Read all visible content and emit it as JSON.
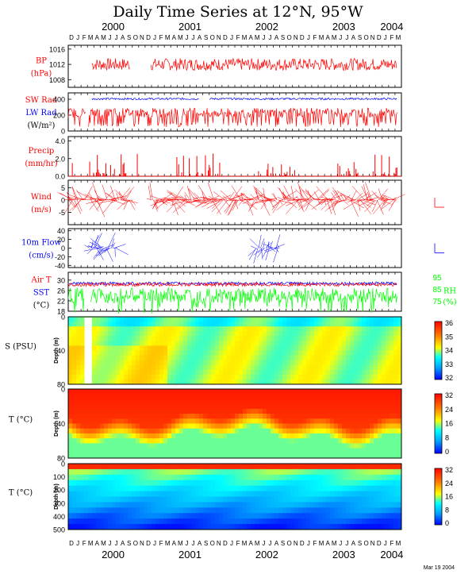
{
  "title": "Daily Time Series at 12°N, 95°W",
  "footer_date": "Mar 19 2004",
  "colors": {
    "red": "#ff0000",
    "blue": "#0000ff",
    "green": "#00ff00",
    "black": "#000000"
  },
  "time_axis": {
    "month_letters": [
      "D",
      "J",
      "F",
      "M",
      "A",
      "M",
      "J",
      "J",
      "A",
      "S",
      "O",
      "N",
      "D",
      "J",
      "F",
      "M",
      "A",
      "M",
      "J",
      "J",
      "A",
      "S",
      "O",
      "N",
      "D",
      "J",
      "F",
      "M",
      "A",
      "M",
      "J",
      "J",
      "A",
      "S",
      "O",
      "N",
      "D",
      "J",
      "F",
      "M",
      "A",
      "M",
      "J",
      "J",
      "A",
      "S",
      "O",
      "N",
      "D",
      "J",
      "F",
      "M"
    ],
    "year_labels": [
      "2000",
      "2001",
      "2002",
      "2003",
      "2004"
    ],
    "start": "1999-12",
    "end": "2004-03"
  },
  "chart_data": [
    {
      "type": "line",
      "panel": "bp",
      "labels": [
        {
          "text": "BP",
          "color": "#ff0000"
        },
        {
          "text": "(hPa)",
          "color": "#ff0000"
        }
      ],
      "ylim": [
        1006,
        1017
      ],
      "yticks": [
        "1016",
        "1012",
        "1008"
      ],
      "series": [
        {
          "color": "#ff0000",
          "segments": [
            [
              "2000-03-20",
              "2000-09-15"
            ],
            [
              "2000-12-20",
              "2004-02-10"
            ]
          ],
          "mean": 1012,
          "amp": 1.6
        }
      ]
    },
    {
      "type": "line",
      "panel": "rad",
      "labels": [
        {
          "text": "SW Rad",
          "color": "#ff0000"
        },
        {
          "text": "LW Rad",
          "color": "#0000ff"
        },
        {
          "text": "(W/m²)",
          "color": "#000000"
        }
      ],
      "ylim": [
        0,
        480
      ],
      "yticks": [
        "400",
        "200",
        "0"
      ],
      "series": [
        {
          "name": "LW Rad",
          "color": "#0000ff",
          "segments": [
            [
              "2000-03-20",
              "2001-08-01"
            ],
            [
              "2001-09-20",
              "2004-02-10"
            ]
          ],
          "mean": 405,
          "amp": 12
        },
        {
          "name": "SW Rad",
          "color": "#ff0000",
          "segments": [
            [
              "1999-12-01",
              "2000-02-20"
            ],
            [
              "2000-03-05",
              "2004-02-10"
            ]
          ],
          "mean": 230,
          "amp": 60
        }
      ]
    },
    {
      "type": "bar",
      "panel": "precip",
      "labels": [
        {
          "text": "Precip",
          "color": "#ff0000"
        },
        {
          "text": "(mm/hr)",
          "color": "#ff0000"
        }
      ],
      "ylim": [
        0,
        4.5
      ],
      "yticks": [
        "4.0",
        "2.0",
        "0.0"
      ],
      "series": [
        {
          "color": "#ff0000",
          "segments": [
            [
              "2000-03-10",
              "2000-10-31"
            ],
            [
              "2001-04-20",
              "2001-11-15"
            ],
            [
              "2002-05-01",
              "2002-11-15"
            ],
            [
              "2003-05-01",
              "2004-02-10"
            ]
          ],
          "max": 2.6
        }
      ]
    },
    {
      "type": "vector",
      "panel": "wind",
      "labels": [
        {
          "text": "Wind",
          "color": "#ff0000"
        },
        {
          "text": "(m/s)",
          "color": "#ff0000"
        }
      ],
      "ylim": [
        -10,
        8
      ],
      "yticks": [
        "5",
        "0",
        "-5"
      ],
      "series": [
        {
          "color": "#ff0000",
          "segments": [
            [
              "1999-12-01",
              "2000-02-20"
            ],
            [
              "2000-03-15",
              "2000-09-20"
            ],
            [
              "2000-12-20",
              "2004-02-10"
            ]
          ]
        }
      ]
    },
    {
      "type": "vector",
      "panel": "flow",
      "labels": [
        {
          "text": "10m Flow",
          "color": "#0000ff"
        },
        {
          "text": "(cm/s)",
          "color": "#0000ff"
        }
      ],
      "ylim": [
        -45,
        45
      ],
      "yticks": [
        "40",
        "20",
        "0",
        "-20",
        "-40"
      ],
      "series": [
        {
          "color": "#0000ff",
          "segments": [
            [
              "2000-03-10",
              "2000-07-10"
            ],
            [
              "2002-04-20",
              "2002-08-15"
            ]
          ]
        }
      ]
    },
    {
      "type": "line",
      "panel": "temp",
      "labels": [
        {
          "text": "Air T",
          "color": "#ff0000"
        },
        {
          "text": "SST",
          "color": "#0000ff"
        },
        {
          "text": "(°C)",
          "color": "#000000"
        }
      ],
      "ylim": [
        18,
        33
      ],
      "yticks": [
        "30",
        "26",
        "22",
        "18"
      ],
      "right_labels": [
        {
          "text": "RH",
          "color": "#00ff00"
        },
        {
          "text": "(%)",
          "color": "#00ff00"
        }
      ],
      "right_ticks": [
        "95",
        "85",
        "75"
      ],
      "series": [
        {
          "name": "RH",
          "color": "#00ff00",
          "segments": [
            [
              "1999-12-01",
              "2000-02-15"
            ],
            [
              "2000-03-15",
              "2004-02-10"
            ]
          ],
          "mean": 24,
          "amp": 3
        },
        {
          "name": "SST",
          "color": "#0000ff",
          "segments": [
            [
              "1999-12-01",
              "2004-02-10"
            ]
          ],
          "mean": 28.7,
          "amp": 0.6
        },
        {
          "name": "Air T",
          "color": "#ff0000",
          "segments": [
            [
              "1999-12-01",
              "2004-02-10"
            ]
          ],
          "mean": 28.3,
          "amp": 0.7
        }
      ]
    },
    {
      "type": "heatmap",
      "panel": "salinity",
      "labels": [
        {
          "text": "S (PSU)",
          "color": "#000000"
        }
      ],
      "ylabel": "Depth (m)",
      "ylim": [
        0,
        80
      ],
      "yticks": [
        "0",
        "40",
        "80"
      ],
      "colorbar": {
        "ticks": [
          "36",
          "35",
          "34",
          "33",
          "32"
        ],
        "range": [
          32,
          36.5
        ]
      },
      "gap": [
        "2000-02-15",
        "2000-03-20"
      ]
    },
    {
      "type": "heatmap",
      "panel": "temp_upper",
      "labels": [
        {
          "text": "T (°C)",
          "color": "#000000"
        }
      ],
      "ylabel": "Depth (m)",
      "ylim": [
        0,
        80
      ],
      "yticks": [
        "0",
        "40",
        "80"
      ],
      "colorbar": {
        "ticks": [
          "32",
          "24",
          "16",
          "8",
          "0"
        ],
        "range": [
          0,
          32
        ]
      }
    },
    {
      "type": "heatmap",
      "panel": "temp_deep",
      "labels": [
        {
          "text": "T (°C)",
          "color": "#000000"
        }
      ],
      "ylabel": "Depth (m)",
      "ylim": [
        0,
        500
      ],
      "yticks": [
        "0",
        "100",
        "200",
        "300",
        "400",
        "500"
      ],
      "colorbar": {
        "ticks": [
          "32",
          "24",
          "16",
          "8",
          "0"
        ],
        "range": [
          0,
          32
        ]
      }
    }
  ]
}
